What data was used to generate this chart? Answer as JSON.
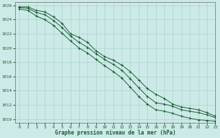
{
  "xlabel": "Graphe pression niveau de la mer (hPa)",
  "background_color": "#cceae7",
  "grid_color": "#aad4d0",
  "line_color": "#1a5c32",
  "xlim": [
    -0.5,
    23
  ],
  "ylim": [
    1009.5,
    1026.5
  ],
  "xticks": [
    0,
    1,
    2,
    3,
    4,
    5,
    6,
    7,
    8,
    9,
    10,
    11,
    12,
    13,
    14,
    15,
    16,
    17,
    18,
    19,
    20,
    21,
    22,
    23
  ],
  "yticks": [
    1010,
    1012,
    1014,
    1016,
    1018,
    1020,
    1022,
    1024,
    1026
  ],
  "hours": [
    0,
    1,
    2,
    3,
    4,
    5,
    6,
    7,
    8,
    9,
    10,
    11,
    12,
    13,
    14,
    15,
    16,
    17,
    18,
    19,
    20,
    21,
    22,
    23
  ],
  "line_max": [
    1025.8,
    1025.8,
    1025.3,
    1025.1,
    1024.4,
    1023.5,
    1022.0,
    1021.5,
    1020.8,
    1019.6,
    1018.8,
    1018.3,
    1017.6,
    1016.7,
    1015.5,
    1014.3,
    1013.5,
    1012.9,
    1012.1,
    1011.7,
    1011.5,
    1011.3,
    1010.9,
    1010.4
  ],
  "line_mid": [
    1025.7,
    1025.6,
    1025.0,
    1024.7,
    1023.9,
    1022.9,
    1021.7,
    1020.8,
    1020.1,
    1019.2,
    1018.4,
    1017.7,
    1016.9,
    1015.7,
    1014.4,
    1013.2,
    1012.3,
    1012.1,
    1011.8,
    1011.3,
    1011.1,
    1010.9,
    1010.6,
    1010.2
  ],
  "line_min": [
    1025.5,
    1025.3,
    1024.5,
    1024.0,
    1023.2,
    1022.1,
    1021.0,
    1020.0,
    1019.3,
    1018.4,
    1017.5,
    1016.7,
    1015.8,
    1014.5,
    1013.2,
    1012.1,
    1011.3,
    1011.1,
    1010.8,
    1010.4,
    1010.1,
    1009.9,
    1009.8,
    1009.7
  ]
}
